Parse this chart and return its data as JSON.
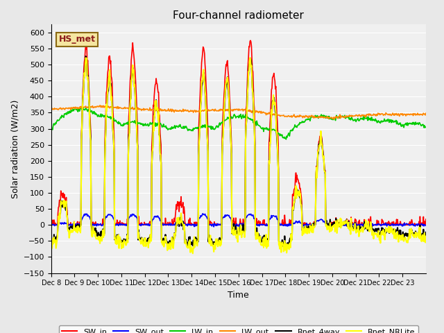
{
  "title": "Four-channel radiometer",
  "xlabel": "Time",
  "ylabel": "Solar radiation (W/m2)",
  "ylim": [
    -150,
    625
  ],
  "yticks": [
    -150,
    -100,
    -50,
    0,
    50,
    100,
    150,
    200,
    250,
    300,
    350,
    400,
    450,
    500,
    550,
    600
  ],
  "num_days": 16,
  "start_day": 8,
  "xtick_labels": [
    "Dec 8",
    "Dec 9",
    "Dec 10",
    "Dec 11",
    "Dec 12",
    "Dec 13",
    "Dec 14",
    "Dec 15",
    "Dec 16",
    "Dec 17",
    "Dec 18",
    "Dec 19",
    "Dec 20",
    "Dec 21",
    "Dec 22",
    "Dec 23"
  ],
  "background_color": "#e8e8e8",
  "plot_bg_color": "#f0f0f0",
  "legend_label": "HS_met",
  "legend_bg": "#f5e6a0",
  "legend_border": "#8B6914",
  "series_colors": {
    "SW_in": "#ff0000",
    "SW_out": "#0000ff",
    "LW_in": "#00cc00",
    "LW_out": "#ff8800",
    "Rnet_4way": "#000000",
    "Rnet_NRLite": "#ffff00"
  },
  "line_widths": {
    "SW_in": 1.2,
    "SW_out": 1.2,
    "LW_in": 1.2,
    "LW_out": 1.2,
    "Rnet_4way": 1.5,
    "Rnet_NRLite": 1.5
  }
}
